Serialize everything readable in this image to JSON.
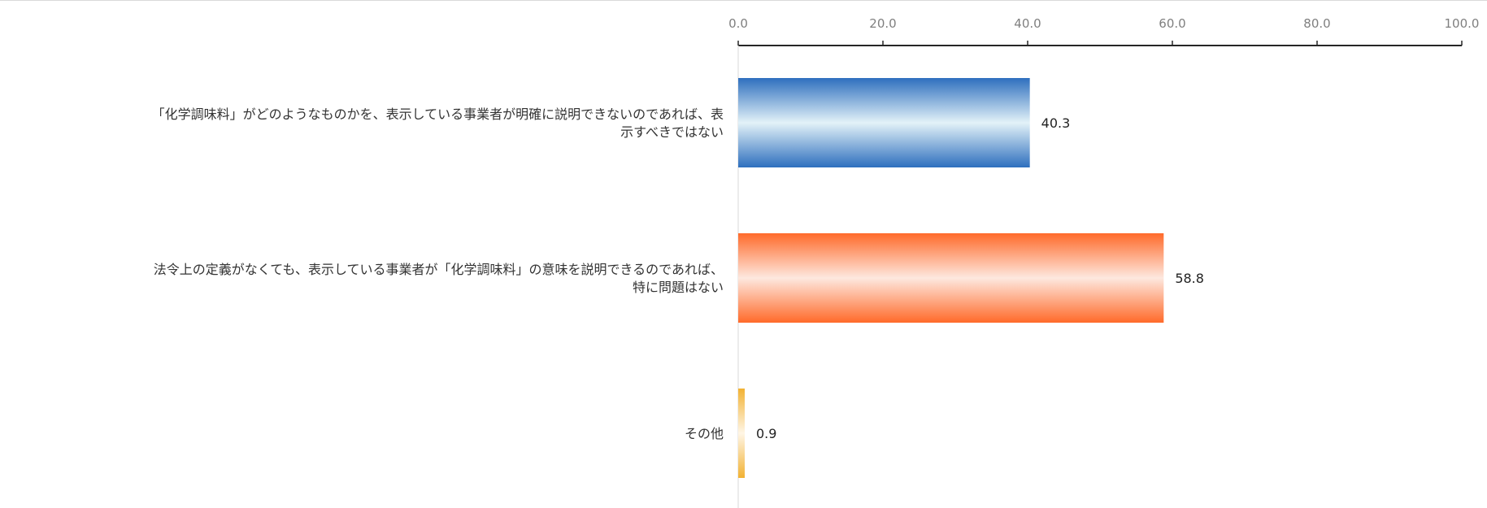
{
  "chart_data": {
    "type": "bar",
    "orientation": "horizontal",
    "title": "",
    "xlabel": "",
    "ylabel": "",
    "xlim": [
      0,
      100
    ],
    "grid": false,
    "legend": "none",
    "axis_position": "top",
    "ticks": [
      "0.0",
      "20.0",
      "40.0",
      "60.0",
      "80.0",
      "100.0"
    ],
    "categories": [
      [
        "「化学調味料」がどのようなものかを、表示している事業者が明確に説明できないのであれば、表",
        "示すべきではない"
      ],
      [
        "法令上の定義がなくても、表示している事業者が「化学調味料」の意味を説明できるのであれば、",
        "特に問題はない"
      ],
      [
        "その他"
      ]
    ],
    "values": [
      40.3,
      58.8,
      0.9
    ],
    "value_labels": [
      "40.3",
      "58.8",
      "0.9"
    ],
    "colors": [
      "#2e6fbe",
      "#ff6a2a",
      "#f2b233"
    ]
  }
}
